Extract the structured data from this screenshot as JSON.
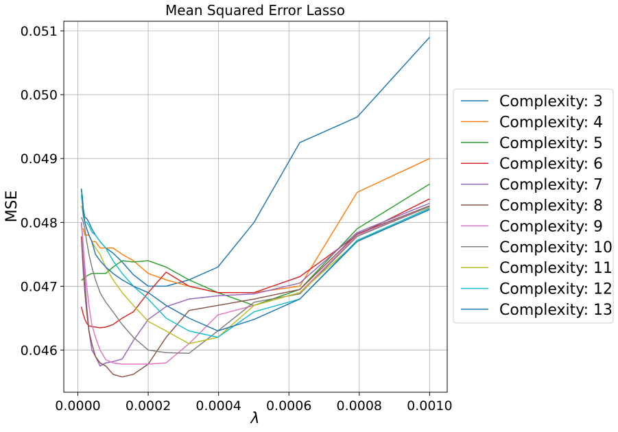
{
  "chart_data": {
    "type": "line",
    "title": "Mean Squared Error Lasso",
    "xlabel": "λ",
    "ylabel": "MSE",
    "xlim": [
      -4e-05,
      0.00105
    ],
    "ylim": [
      0.04534,
      0.05115
    ],
    "grid": true,
    "legend_position": "right, outside plot",
    "x_ticks": [
      0.0,
      0.0002,
      0.0004,
      0.0006,
      0.0008,
      0.001
    ],
    "x_tick_labels": [
      "0.0000",
      "0.0002",
      "0.0004",
      "0.0006",
      "0.0008",
      "0.0010"
    ],
    "y_ticks": [
      0.046,
      0.047,
      0.048,
      0.049,
      0.05,
      0.051
    ],
    "y_tick_labels": [
      "0.046",
      "0.047",
      "0.048",
      "0.049",
      "0.050",
      "0.051"
    ],
    "x": [
      1e-05,
      1.26e-05,
      1.58e-05,
      2e-05,
      2.51e-05,
      3.16e-05,
      3.98e-05,
      5.01e-05,
      6.31e-05,
      7.94e-05,
      0.0001,
      0.000126,
      0.000158,
      0.0002,
      0.000251,
      0.000316,
      0.000398,
      0.000501,
      0.000631,
      0.000794,
      0.001
    ],
    "series": [
      {
        "name": "Complexity: 3",
        "color": "#1f77b4",
        "values": [
          0.04852,
          0.0484,
          0.0482,
          0.04808,
          0.04806,
          0.048,
          0.0479,
          0.0478,
          0.0477,
          0.0476,
          0.04752,
          0.04738,
          0.04718,
          0.047,
          0.047,
          0.0471,
          0.0473,
          0.048,
          0.04925,
          0.04965,
          0.0509
        ]
      },
      {
        "name": "Complexity: 4",
        "color": "#ff7f0e",
        "values": [
          0.0479,
          0.0479,
          0.0479,
          0.0478,
          0.0478,
          0.0478,
          0.0477,
          0.0477,
          0.0476,
          0.0476,
          0.0476,
          0.0475,
          0.0474,
          0.0472,
          0.0471,
          0.047,
          0.0469,
          0.0469,
          0.047,
          0.04847,
          0.049
        ]
      },
      {
        "name": "Complexity: 5",
        "color": "#2ca02c",
        "values": [
          0.0471,
          0.0471,
          0.04712,
          0.04714,
          0.04716,
          0.04718,
          0.0472,
          0.0472,
          0.0472,
          0.0472,
          0.0473,
          0.0474,
          0.04738,
          0.0474,
          0.0473,
          0.0471,
          0.0469,
          0.0467,
          0.04695,
          0.0479,
          0.0486
        ]
      },
      {
        "name": "Complexity: 6",
        "color": "#d62728",
        "values": [
          0.04668,
          0.04662,
          0.04655,
          0.04648,
          0.04642,
          0.04638,
          0.04637,
          0.04636,
          0.04635,
          0.04636,
          0.0464,
          0.0465,
          0.0466,
          0.0469,
          0.04722,
          0.047,
          0.0469,
          0.0469,
          0.04715,
          0.0478,
          0.04837
        ]
      },
      {
        "name": "Complexity: 7",
        "color": "#9467bd",
        "values": [
          0.048,
          0.0478,
          0.0475,
          0.0471,
          0.0467,
          0.0463,
          0.046,
          0.0459,
          0.04575,
          0.0458,
          0.04582,
          0.04586,
          0.04615,
          0.04648,
          0.04668,
          0.0468,
          0.04685,
          0.04688,
          0.04705,
          0.04784,
          0.0483
        ]
      },
      {
        "name": "Complexity: 8",
        "color": "#8c564b",
        "values": [
          0.04778,
          0.0475,
          0.0472,
          0.0469,
          0.0466,
          0.0463,
          0.0461,
          0.0459,
          0.0458,
          0.04575,
          0.04562,
          0.04558,
          0.04562,
          0.04578,
          0.0462,
          0.04662,
          0.0467,
          0.0468,
          0.04695,
          0.04782,
          0.04826
        ]
      },
      {
        "name": "Complexity: 9",
        "color": "#e377c2",
        "values": [
          0.04795,
          0.04785,
          0.0476,
          0.0473,
          0.047,
          0.0467,
          0.0464,
          0.0462,
          0.046,
          0.04585,
          0.0458,
          0.04578,
          0.04578,
          0.04578,
          0.0458,
          0.0461,
          0.04655,
          0.0467,
          0.0469,
          0.0478,
          0.04825
        ]
      },
      {
        "name": "Complexity: 10",
        "color": "#7f7f7f",
        "values": [
          0.04808,
          0.04805,
          0.048,
          0.0479,
          0.0477,
          0.0475,
          0.0473,
          0.0471,
          0.0469,
          0.04675,
          0.0466,
          0.0464,
          0.0462,
          0.046,
          0.04596,
          0.04595,
          0.0463,
          0.04675,
          0.04688,
          0.04778,
          0.04825
        ]
      },
      {
        "name": "Complexity: 11",
        "color": "#bcbd22",
        "values": [
          0.04826,
          0.0482,
          0.0481,
          0.048,
          0.0479,
          0.0478,
          0.0477,
          0.0476,
          0.0475,
          0.0473,
          0.0471,
          0.0469,
          0.0467,
          0.04645,
          0.0463,
          0.0461,
          0.0462,
          0.0467,
          0.0469,
          0.0477,
          0.04823
        ]
      },
      {
        "name": "Complexity: 12",
        "color": "#17becf",
        "values": [
          0.04843,
          0.0483,
          0.04815,
          0.048,
          0.048,
          0.04795,
          0.04785,
          0.0478,
          0.0477,
          0.0476,
          0.0474,
          0.0472,
          0.047,
          0.0468,
          0.0465,
          0.0463,
          0.0462,
          0.0466,
          0.0468,
          0.04772,
          0.04822
        ]
      },
      {
        "name": "Complexity: 13",
        "color": "#1f77b4",
        "values": [
          0.04853,
          0.0484,
          0.0481,
          0.048,
          0.0479,
          0.0478,
          0.0477,
          0.0475,
          0.0474,
          0.0473,
          0.0472,
          0.0471,
          0.047,
          0.0469,
          0.0467,
          0.0465,
          0.0463,
          0.04648,
          0.0468,
          0.0477,
          0.0482
        ]
      }
    ]
  }
}
